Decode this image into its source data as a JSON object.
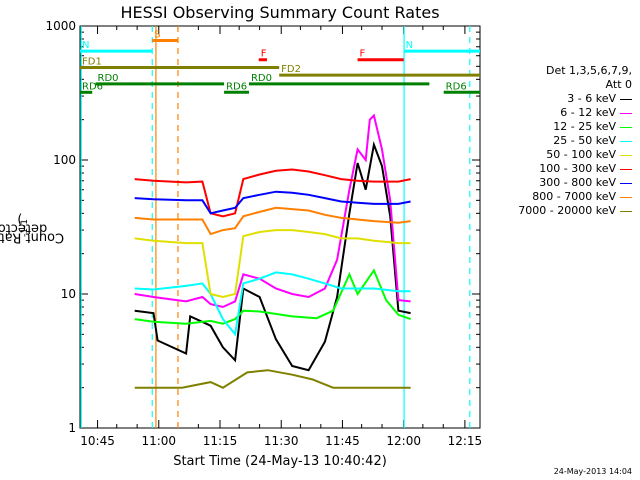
{
  "chart_data": {
    "type": "line",
    "title": "HESSI Observing Summary Count Rates",
    "xlabel": "Start Time (24-May-13 10:40:42)",
    "ylabel_main": "Count Rate (s",
    "ylabel_sup1": "-1",
    "ylabel_mid": " detector",
    "ylabel_sup2": "-1",
    "ylabel_end": ")",
    "y_scale": "log",
    "ylim": [
      1,
      1000
    ],
    "xlim_minutes": [
      0,
      98
    ],
    "y_ticks": [
      {
        "v": 1,
        "label": "1"
      },
      {
        "v": 10,
        "label": "10"
      },
      {
        "v": 100,
        "label": "100"
      },
      {
        "v": 1000,
        "label": "1000"
      }
    ],
    "x_ticks": [
      {
        "m": 4.3,
        "label": "10:45"
      },
      {
        "m": 19.3,
        "label": "11:00"
      },
      {
        "m": 34.3,
        "label": "11:15"
      },
      {
        "m": 49.3,
        "label": "11:30"
      },
      {
        "m": 64.3,
        "label": "11:45"
      },
      {
        "m": 79.3,
        "label": "12:00"
      },
      {
        "m": 94.3,
        "label": "12:15"
      }
    ],
    "legend_title": "Det 1,3,5,6,7,9,",
    "legend_subtitle": "Att 0",
    "series": [
      {
        "name": "3 - 6 keV",
        "color": "#000000",
        "values": [
          [
            13.4,
            7.5
          ],
          [
            18,
            7.2
          ],
          [
            19,
            4.5
          ],
          [
            26,
            3.6
          ],
          [
            27,
            6.8
          ],
          [
            32,
            5.8
          ],
          [
            35,
            4
          ],
          [
            38,
            3.2
          ],
          [
            40,
            11
          ],
          [
            44,
            9.5
          ],
          [
            48,
            4.6
          ],
          [
            52,
            2.9
          ],
          [
            56,
            2.7
          ],
          [
            60,
            4.4
          ],
          [
            63,
            9.5
          ],
          [
            66,
            40
          ],
          [
            68,
            95
          ],
          [
            70,
            60
          ],
          [
            72,
            130
          ],
          [
            74,
            90
          ],
          [
            76,
            38
          ],
          [
            78,
            7.5
          ],
          [
            81,
            7.2
          ]
        ]
      },
      {
        "name": "6 - 12 keV",
        "color": "#ff00ff",
        "values": [
          [
            13.4,
            10
          ],
          [
            18,
            9.5
          ],
          [
            26,
            8.8
          ],
          [
            30,
            9.5
          ],
          [
            32,
            8.4
          ],
          [
            35,
            8
          ],
          [
            38,
            8.8
          ],
          [
            40,
            14
          ],
          [
            44,
            13
          ],
          [
            48,
            11
          ],
          [
            52,
            10
          ],
          [
            56,
            9.5
          ],
          [
            60,
            11
          ],
          [
            63,
            18
          ],
          [
            66,
            60
          ],
          [
            68,
            120
          ],
          [
            70,
            100
          ],
          [
            71,
            200
          ],
          [
            72,
            215
          ],
          [
            74,
            120
          ],
          [
            76,
            50
          ],
          [
            78,
            9
          ],
          [
            81,
            8.8
          ]
        ]
      },
      {
        "name": "12 - 25 keV",
        "color": "#00ff00",
        "values": [
          [
            13.4,
            6.5
          ],
          [
            18,
            6.2
          ],
          [
            26,
            6
          ],
          [
            32,
            6.3
          ],
          [
            35,
            6
          ],
          [
            38,
            6.5
          ],
          [
            40,
            7.5
          ],
          [
            44,
            7.4
          ],
          [
            52,
            6.8
          ],
          [
            58,
            6.6
          ],
          [
            62,
            7.5
          ],
          [
            66,
            14
          ],
          [
            68,
            10
          ],
          [
            72,
            15
          ],
          [
            75,
            9
          ],
          [
            78,
            7
          ],
          [
            81,
            6.5
          ]
        ]
      },
      {
        "name": "25 - 50 keV",
        "color": "#00ffff",
        "values": [
          [
            13.4,
            11
          ],
          [
            18,
            10.8
          ],
          [
            26,
            11.5
          ],
          [
            30,
            12
          ],
          [
            32,
            10
          ],
          [
            35,
            6.5
          ],
          [
            38,
            5
          ],
          [
            40,
            12
          ],
          [
            44,
            13
          ],
          [
            48,
            14.5
          ],
          [
            52,
            14
          ],
          [
            56,
            13
          ],
          [
            60,
            12
          ],
          [
            64,
            11
          ],
          [
            68,
            11
          ],
          [
            72,
            11
          ],
          [
            78,
            10.5
          ],
          [
            81,
            10.5
          ]
        ]
      },
      {
        "name": "50 - 100 keV",
        "color": "#e0e000",
        "values": [
          [
            13.4,
            26
          ],
          [
            18,
            25
          ],
          [
            26,
            24
          ],
          [
            30,
            24
          ],
          [
            32,
            10
          ],
          [
            35,
            9.5
          ],
          [
            38,
            10
          ],
          [
            40,
            27
          ],
          [
            44,
            29
          ],
          [
            48,
            30
          ],
          [
            52,
            30
          ],
          [
            56,
            29
          ],
          [
            60,
            28
          ],
          [
            64,
            26
          ],
          [
            68,
            26
          ],
          [
            72,
            25
          ],
          [
            78,
            24
          ],
          [
            81,
            24
          ]
        ]
      },
      {
        "name": "100 - 300 keV",
        "color": "#ff0000",
        "values": [
          [
            13.4,
            72
          ],
          [
            18,
            70
          ],
          [
            26,
            68
          ],
          [
            30,
            69
          ],
          [
            32,
            40
          ],
          [
            35,
            38
          ],
          [
            38,
            40
          ],
          [
            40,
            72
          ],
          [
            44,
            78
          ],
          [
            48,
            83
          ],
          [
            52,
            85
          ],
          [
            56,
            82
          ],
          [
            60,
            77
          ],
          [
            64,
            72
          ],
          [
            68,
            70
          ],
          [
            72,
            69
          ],
          [
            78,
            69
          ],
          [
            81,
            72
          ]
        ]
      },
      {
        "name": "300 - 800 keV",
        "color": "#0000ff",
        "values": [
          [
            13.4,
            52
          ],
          [
            18,
            51
          ],
          [
            26,
            50
          ],
          [
            30,
            50
          ],
          [
            32,
            40
          ],
          [
            35,
            42
          ],
          [
            38,
            44
          ],
          [
            40,
            52
          ],
          [
            44,
            55
          ],
          [
            48,
            58
          ],
          [
            52,
            57
          ],
          [
            56,
            55
          ],
          [
            60,
            52
          ],
          [
            64,
            49
          ],
          [
            68,
            48
          ],
          [
            72,
            47
          ],
          [
            78,
            47
          ],
          [
            81,
            49
          ]
        ]
      },
      {
        "name": "800 - 7000 keV",
        "color": "#ff8000",
        "values": [
          [
            13.4,
            37
          ],
          [
            18,
            36
          ],
          [
            26,
            36
          ],
          [
            30,
            36
          ],
          [
            32,
            28
          ],
          [
            35,
            30
          ],
          [
            38,
            31
          ],
          [
            40,
            38
          ],
          [
            44,
            41
          ],
          [
            48,
            44
          ],
          [
            52,
            43
          ],
          [
            56,
            42
          ],
          [
            60,
            39
          ],
          [
            64,
            37
          ],
          [
            68,
            36
          ],
          [
            72,
            35
          ],
          [
            78,
            34
          ],
          [
            81,
            35
          ]
        ]
      },
      {
        "name": "7000 - 20000 keV",
        "color": "#808000",
        "values": [
          [
            13.4,
            2
          ],
          [
            19,
            2
          ],
          [
            25,
            2
          ],
          [
            32,
            2.2
          ],
          [
            35,
            2
          ],
          [
            41,
            2.6
          ],
          [
            46,
            2.7
          ],
          [
            52,
            2.5
          ],
          [
            57,
            2.3
          ],
          [
            62,
            2
          ],
          [
            67,
            2
          ],
          [
            72,
            2
          ],
          [
            78,
            2
          ],
          [
            81,
            2
          ]
        ]
      }
    ],
    "flags": [
      {
        "label": "S",
        "color": "#ff8000",
        "start": 17.7,
        "end": 24.0,
        "level": 780
      },
      {
        "label": "N",
        "color": "#00ffff",
        "start": 0.0,
        "end": 17.7,
        "level": 650
      },
      {
        "label": "N",
        "color": "#00ffff",
        "start": 79.3,
        "end": 98.0,
        "level": 650
      },
      {
        "label": "F",
        "color": "#ff0000",
        "start": 43.8,
        "end": 45.8,
        "level": 560
      },
      {
        "label": "F",
        "color": "#ff0000",
        "start": 68.0,
        "end": 79.3,
        "level": 560
      },
      {
        "label": "FD1",
        "color": "#808000",
        "start": 0.0,
        "end": 48.8,
        "level": 490
      },
      {
        "label": "FD2",
        "color": "#808000",
        "start": 48.8,
        "end": 98.0,
        "level": 430
      },
      {
        "label": "RD0",
        "color": "#008000",
        "start": 3.8,
        "end": 35.3,
        "level": 370
      },
      {
        "label": "RD0",
        "color": "#008000",
        "start": 41.4,
        "end": 85.6,
        "level": 370
      },
      {
        "label": "RD6",
        "color": "#008000",
        "start": 0.0,
        "end": 3.0,
        "level": 320
      },
      {
        "label": "RD6",
        "color": "#008000",
        "start": 35.3,
        "end": 41.4,
        "level": 320
      },
      {
        "label": "RD6",
        "color": "#008000",
        "start": 89.1,
        "end": 98.0,
        "level": 320
      }
    ],
    "markers": [
      {
        "color": "#00ffff",
        "style": "solid",
        "m": 0.3
      },
      {
        "color": "#00ffff",
        "style": "dashed",
        "m": 17.7
      },
      {
        "color": "#ff8000",
        "style": "solid",
        "m": 18.6
      },
      {
        "color": "#ff8000",
        "style": "dashed",
        "m": 24.0
      },
      {
        "color": "#00ffff",
        "style": "solid",
        "m": 79.4
      },
      {
        "color": "#00ffff",
        "style": "dashed",
        "m": 95.5
      }
    ],
    "grid": false,
    "legend_position": "right"
  },
  "timestamp": "24-May-2013 14:04"
}
